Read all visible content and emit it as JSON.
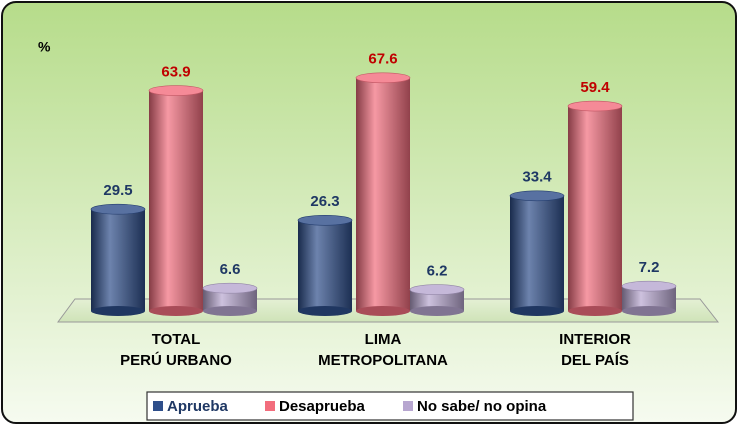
{
  "chart_data": {
    "type": "bar",
    "unit_label": "%",
    "categories": [
      [
        "TOTAL",
        "PERÚ URBANO"
      ],
      [
        "LIMA",
        "METROPOLITANA"
      ],
      [
        "INTERIOR",
        "DEL PAÍS"
      ]
    ],
    "series": [
      {
        "name": "Aprueba",
        "color": "#2e4e8a",
        "label_color": "#1f3864",
        "values": [
          29.5,
          26.3,
          33.4
        ]
      },
      {
        "name": "Desaprueba",
        "color": "#f26d7d",
        "label_color": "#c00000",
        "values": [
          63.9,
          67.6,
          59.4
        ]
      },
      {
        "name": "No sabe/ no opina",
        "color": "#b7a6d0",
        "label_color": "#1f3864",
        "values": [
          6.6,
          6.2,
          7.2
        ]
      }
    ]
  }
}
